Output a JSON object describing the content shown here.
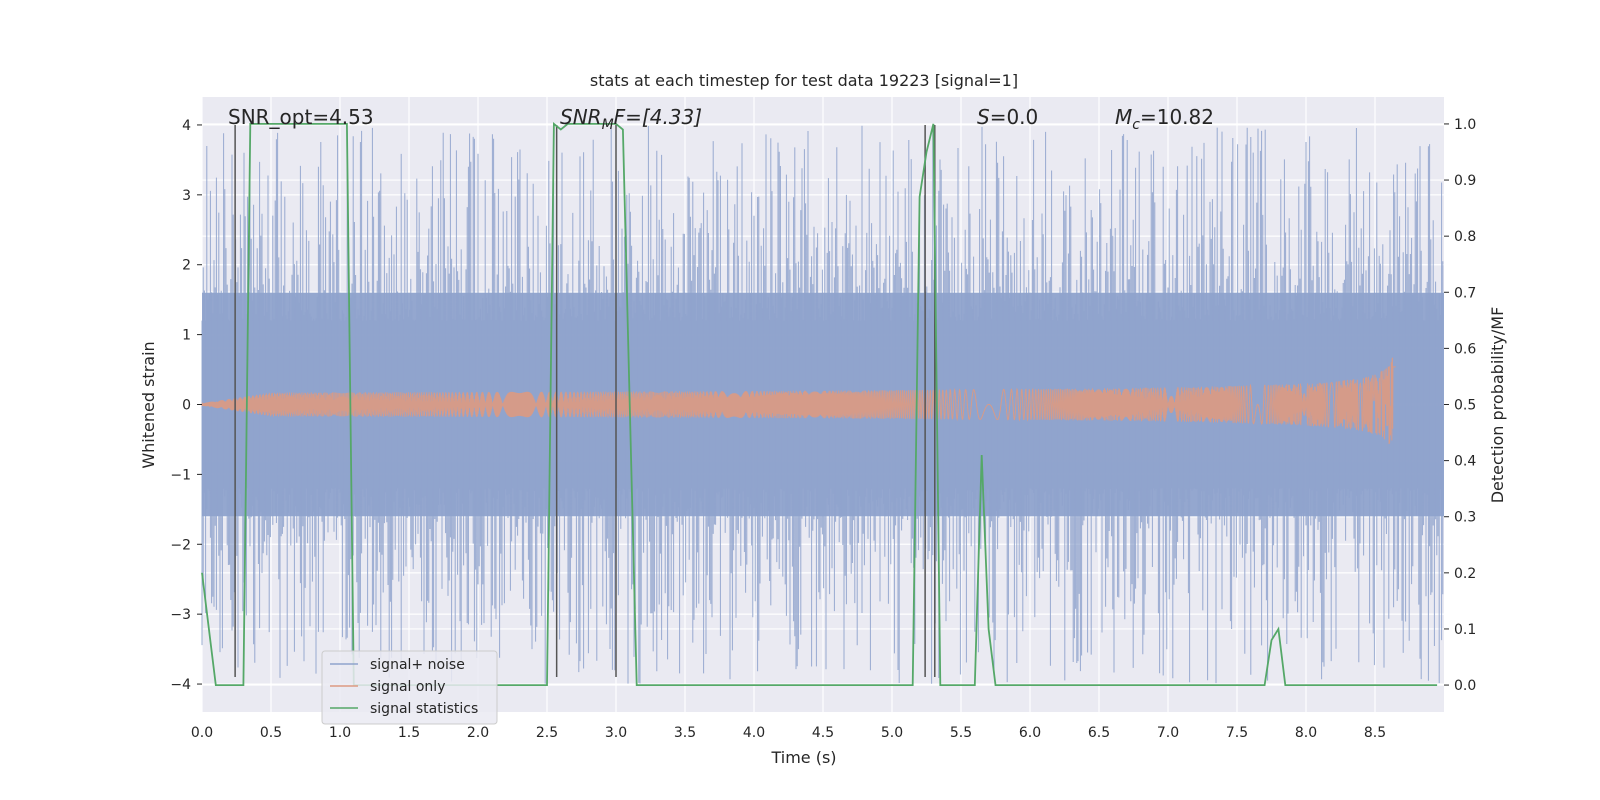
{
  "chart_data": {
    "type": "line",
    "title": "stats at each timestep for test data 19223 [signal=1]",
    "xlabel": "Time (s)",
    "ylabel_left": "Whitened strain",
    "ylabel_right": "Detection probability/MF",
    "xlim": [
      0.0,
      9.0
    ],
    "ylim_left": [
      -4.4,
      4.4
    ],
    "ylim_right": [
      -0.048,
      1.048
    ],
    "xticks": [
      "0.0",
      "0.5",
      "1.0",
      "1.5",
      "2.0",
      "2.5",
      "3.0",
      "3.5",
      "4.0",
      "4.5",
      "5.0",
      "5.5",
      "6.0",
      "6.5",
      "7.0",
      "7.5",
      "8.0",
      "8.5"
    ],
    "yticks_left": [
      "4",
      "3",
      "2",
      "1",
      "0",
      "−1",
      "−2",
      "−3",
      "−4"
    ],
    "yticks_right": [
      "1.0",
      "0.9",
      "0.8",
      "0.7",
      "0.6",
      "0.5",
      "0.4",
      "0.3",
      "0.2",
      "0.1",
      "0.0"
    ],
    "grid": true,
    "legend_position": "lower-left",
    "annotations": {
      "snr_opt": "SNR_opt=4.53",
      "snr_mf_sym": "SNR",
      "snr_mf_sub": "M",
      "snr_mf_rest": "F=[4.33]",
      "s_sym": "S",
      "s_rest": "=0.0",
      "mc_sym": "M",
      "mc_sub": "c",
      "mc_rest": "=10.82"
    },
    "series": [
      {
        "name": "signal+ noise",
        "color": "#8fa3cc",
        "envelope_abs": 1.6,
        "spike_max": 4.0
      },
      {
        "name": "signal only",
        "color": "#dd9a82",
        "chirp_end_time": 8.65,
        "chirp_peak_amplitude": 0.7
      },
      {
        "name": "signal statistics",
        "color": "#55a868",
        "x": [
          0.0,
          0.05,
          0.1,
          0.15,
          0.2,
          0.25,
          0.3,
          0.35,
          0.45,
          0.55,
          0.65,
          0.75,
          0.85,
          0.95,
          1.0,
          1.05,
          1.1,
          1.15,
          1.2,
          1.3,
          1.5,
          2.0,
          2.5,
          2.55,
          2.6,
          2.65,
          2.75,
          2.85,
          2.95,
          3.0,
          3.05,
          3.15,
          3.25,
          3.5,
          4.0,
          4.5,
          5.0,
          5.15,
          5.2,
          5.25,
          5.3,
          5.35,
          5.4,
          5.5,
          5.6,
          5.65,
          5.7,
          5.75,
          5.8,
          5.85,
          6.0,
          7.0,
          7.6,
          7.65,
          7.7,
          7.75,
          7.8,
          7.85,
          7.9,
          7.95,
          8.0,
          8.5,
          8.95
        ],
        "values": [
          0.2,
          0.1,
          0.0,
          0.0,
          0.0,
          0.0,
          0.0,
          1.0,
          1.0,
          1.0,
          1.0,
          1.0,
          1.0,
          1.0,
          1.0,
          1.0,
          0.0,
          0.0,
          0.0,
          0.0,
          0.0,
          0.0,
          0.0,
          1.0,
          0.99,
          1.0,
          1.0,
          1.0,
          1.0,
          1.0,
          0.99,
          0.0,
          0.0,
          0.0,
          0.0,
          0.0,
          0.0,
          0.0,
          0.87,
          0.95,
          1.0,
          0.0,
          0.0,
          0.0,
          0.0,
          0.41,
          0.1,
          0.0,
          0.0,
          0.0,
          0.0,
          0.0,
          0.0,
          0.0,
          0.0,
          0.08,
          0.1,
          0.0,
          0.0,
          0.0,
          0.0,
          0.0,
          0.0
        ]
      }
    ],
    "vertical_markers": [
      0.24,
      2.57,
      3.0,
      5.24,
      5.31
    ]
  }
}
